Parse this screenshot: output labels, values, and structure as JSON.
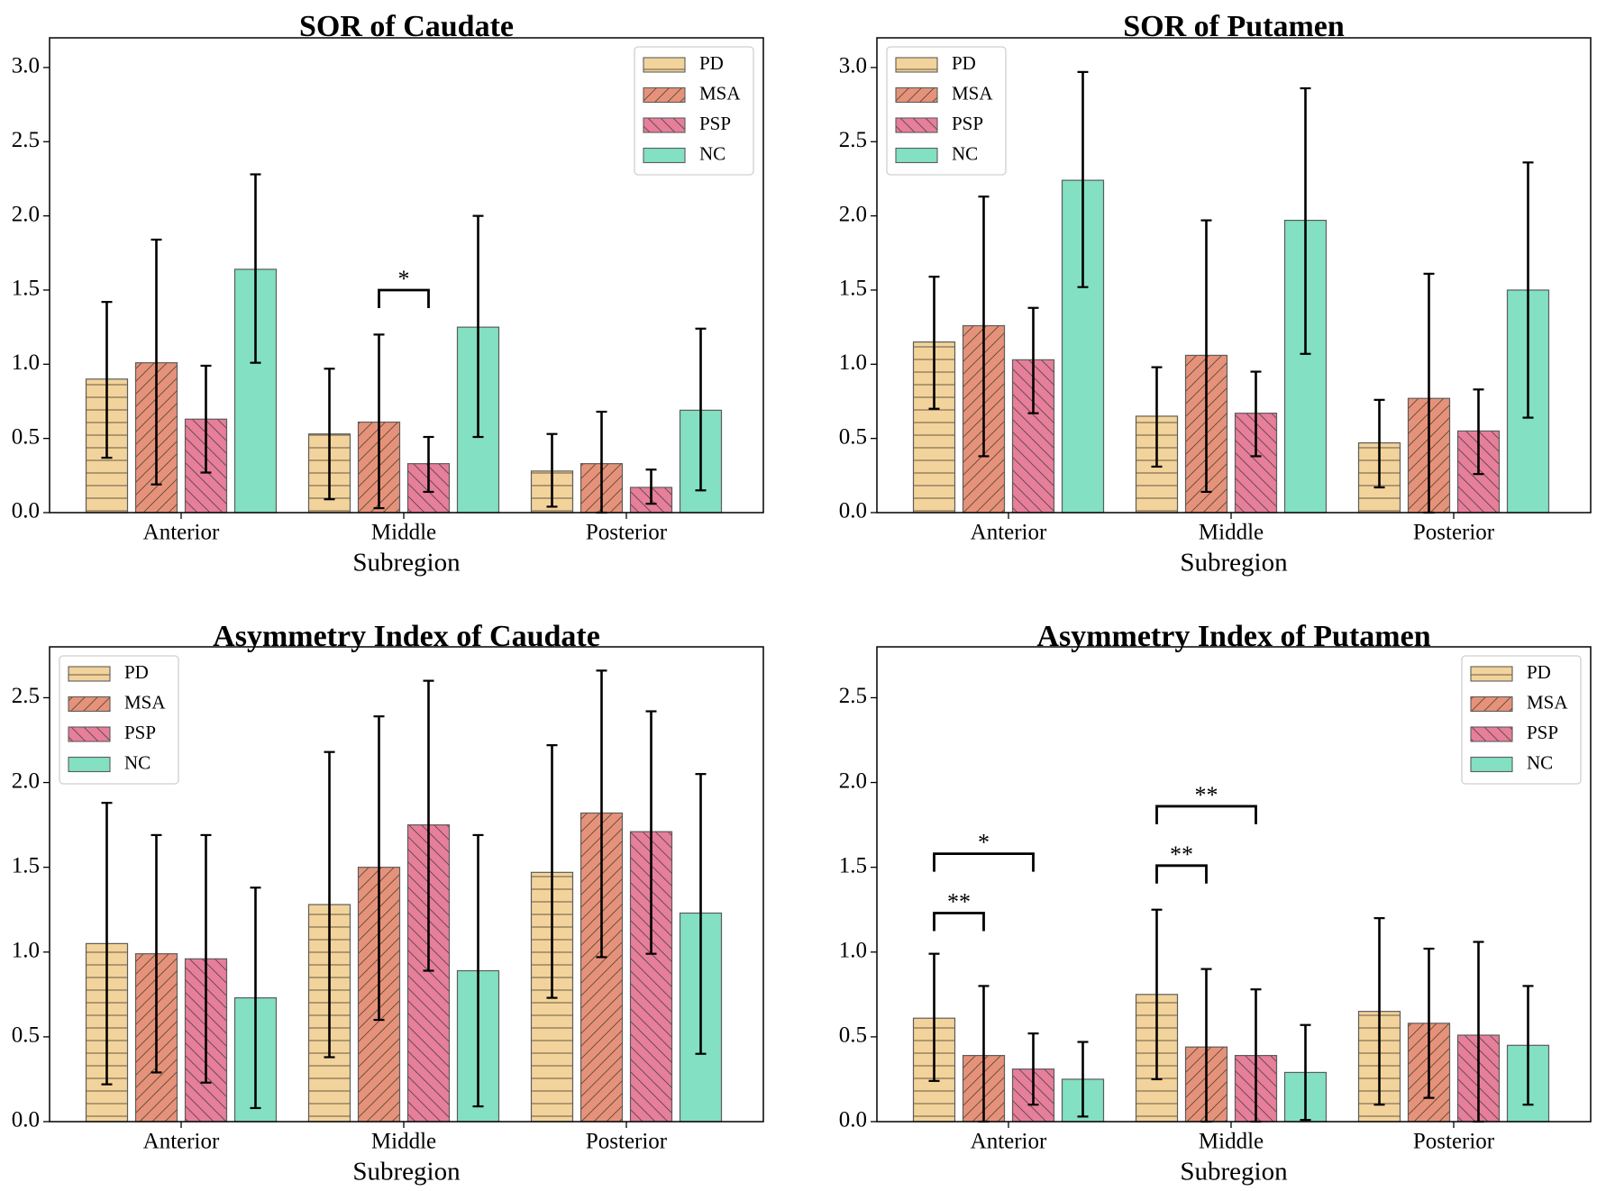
{
  "figure": {
    "background": "#ffffff"
  },
  "groups": [
    {
      "key": "PD",
      "label": "PD",
      "color": "#f2d39b",
      "hatch": "horizontal"
    },
    {
      "key": "MSA",
      "label": "MSA",
      "color": "#e6927a",
      "hatch": "forward-diagonal"
    },
    {
      "key": "PSP",
      "label": "PSP",
      "color": "#e67e9c",
      "hatch": "back-diagonal"
    },
    {
      "key": "NC",
      "label": "NC",
      "color": "#83e0c2",
      "hatch": "none"
    }
  ],
  "chart_data": [
    {
      "type": "bar",
      "title": "SOR of Caudate",
      "xlabel": "Subregion",
      "ylabel": "",
      "ylim": [
        0,
        3.2
      ],
      "yticks": [
        0.0,
        0.5,
        1.0,
        1.5,
        2.0,
        2.5,
        3.0
      ],
      "ytick_labels": [
        "0.0",
        "0.5",
        "1.0",
        "1.5",
        "2.0",
        "2.5",
        "3.0"
      ],
      "categories": [
        "Anterior",
        "Middle",
        "Posterior"
      ],
      "legend_position": "top-right",
      "series": [
        {
          "name": "PD",
          "values": [
            0.9,
            0.53,
            0.28
          ],
          "err_low": [
            0.37,
            0.09,
            0.04
          ],
          "err_high": [
            1.42,
            0.97,
            0.53
          ]
        },
        {
          "name": "MSA",
          "values": [
            1.01,
            0.61,
            0.33
          ],
          "err_low": [
            0.19,
            0.03,
            0.0
          ],
          "err_high": [
            1.84,
            1.2,
            0.68
          ]
        },
        {
          "name": "PSP",
          "values": [
            0.63,
            0.33,
            0.17
          ],
          "err_low": [
            0.27,
            0.14,
            0.06
          ],
          "err_high": [
            0.99,
            0.51,
            0.29
          ]
        },
        {
          "name": "NC",
          "values": [
            1.64,
            1.25,
            0.69
          ],
          "err_low": [
            1.01,
            0.51,
            0.15
          ],
          "err_high": [
            2.28,
            2.0,
            1.24
          ]
        }
      ],
      "significance": [
        {
          "category": "Middle",
          "from": "MSA",
          "to": "PSP",
          "y": 1.5,
          "label": "*"
        }
      ]
    },
    {
      "type": "bar",
      "title": "SOR of Putamen",
      "xlabel": "Subregion",
      "ylabel": "",
      "ylim": [
        0,
        3.2
      ],
      "yticks": [
        0.0,
        0.5,
        1.0,
        1.5,
        2.0,
        2.5,
        3.0
      ],
      "ytick_labels": [
        "0.0",
        "0.5",
        "1.0",
        "1.5",
        "2.0",
        "2.5",
        "3.0"
      ],
      "categories": [
        "Anterior",
        "Middle",
        "Posterior"
      ],
      "legend_position": "top-left",
      "series": [
        {
          "name": "PD",
          "values": [
            1.15,
            0.65,
            0.47
          ],
          "err_low": [
            0.7,
            0.31,
            0.17
          ],
          "err_high": [
            1.59,
            0.98,
            0.76
          ]
        },
        {
          "name": "MSA",
          "values": [
            1.26,
            1.06,
            0.77
          ],
          "err_low": [
            0.38,
            0.14,
            0.0
          ],
          "err_high": [
            2.13,
            1.97,
            1.61
          ]
        },
        {
          "name": "PSP",
          "values": [
            1.03,
            0.67,
            0.55
          ],
          "err_low": [
            0.67,
            0.38,
            0.26
          ],
          "err_high": [
            1.38,
            0.95,
            0.83
          ]
        },
        {
          "name": "NC",
          "values": [
            2.24,
            1.97,
            1.5
          ],
          "err_low": [
            1.52,
            1.07,
            0.64
          ],
          "err_high": [
            2.97,
            2.86,
            2.36
          ]
        }
      ],
      "significance": []
    },
    {
      "type": "bar",
      "title": "Asymmetry Index of Caudate",
      "xlabel": "Subregion",
      "ylabel": "",
      "ylim": [
        0,
        2.8
      ],
      "yticks": [
        0.0,
        0.5,
        1.0,
        1.5,
        2.0,
        2.5
      ],
      "ytick_labels": [
        "0.0",
        "0.5",
        "1.0",
        "1.5",
        "2.0",
        "2.5"
      ],
      "categories": [
        "Anterior",
        "Middle",
        "Posterior"
      ],
      "legend_position": "top-left",
      "series": [
        {
          "name": "PD",
          "values": [
            1.05,
            1.28,
            1.47
          ],
          "err_low": [
            0.22,
            0.38,
            0.73
          ],
          "err_high": [
            1.88,
            2.18,
            2.22
          ]
        },
        {
          "name": "MSA",
          "values": [
            0.99,
            1.5,
            1.82
          ],
          "err_low": [
            0.29,
            0.6,
            0.97
          ],
          "err_high": [
            1.69,
            2.39,
            2.66
          ]
        },
        {
          "name": "PSP",
          "values": [
            0.96,
            1.75,
            1.71
          ],
          "err_low": [
            0.23,
            0.89,
            0.99
          ],
          "err_high": [
            1.69,
            2.6,
            2.42
          ]
        },
        {
          "name": "NC",
          "values": [
            0.73,
            0.89,
            1.23
          ],
          "err_low": [
            0.08,
            0.09,
            0.4
          ],
          "err_high": [
            1.38,
            1.69,
            2.05
          ]
        }
      ],
      "significance": []
    },
    {
      "type": "bar",
      "title": "Asymmetry Index of Putamen",
      "xlabel": "Subregion",
      "ylabel": "",
      "ylim": [
        0,
        2.8
      ],
      "yticks": [
        0.0,
        0.5,
        1.0,
        1.5,
        2.0,
        2.5
      ],
      "ytick_labels": [
        "0.0",
        "0.5",
        "1.0",
        "1.5",
        "2.0",
        "2.5"
      ],
      "categories": [
        "Anterior",
        "Middle",
        "Posterior"
      ],
      "legend_position": "top-right",
      "series": [
        {
          "name": "PD",
          "values": [
            0.61,
            0.75,
            0.65
          ],
          "err_low": [
            0.24,
            0.25,
            0.1
          ],
          "err_high": [
            0.99,
            1.25,
            1.2
          ]
        },
        {
          "name": "MSA",
          "values": [
            0.39,
            0.44,
            0.58
          ],
          "err_low": [
            0.0,
            0.0,
            0.14
          ],
          "err_high": [
            0.8,
            0.9,
            1.02
          ]
        },
        {
          "name": "PSP",
          "values": [
            0.31,
            0.39,
            0.51
          ],
          "err_low": [
            0.1,
            0.0,
            0.0
          ],
          "err_high": [
            0.52,
            0.78,
            1.06
          ]
        },
        {
          "name": "NC",
          "values": [
            0.25,
            0.29,
            0.45
          ],
          "err_low": [
            0.03,
            0.01,
            0.1
          ],
          "err_high": [
            0.47,
            0.57,
            0.8
          ]
        }
      ],
      "significance": [
        {
          "category": "Anterior",
          "from": "PD",
          "to": "MSA",
          "y": 1.23,
          "label": "**"
        },
        {
          "category": "Anterior",
          "from": "PD",
          "to": "PSP",
          "y": 1.58,
          "label": "*"
        },
        {
          "category": "Middle",
          "from": "PD",
          "to": "MSA",
          "y": 1.51,
          "label": "**"
        },
        {
          "category": "Middle",
          "from": "PD",
          "to": "PSP",
          "y": 1.86,
          "label": "**"
        }
      ]
    }
  ]
}
